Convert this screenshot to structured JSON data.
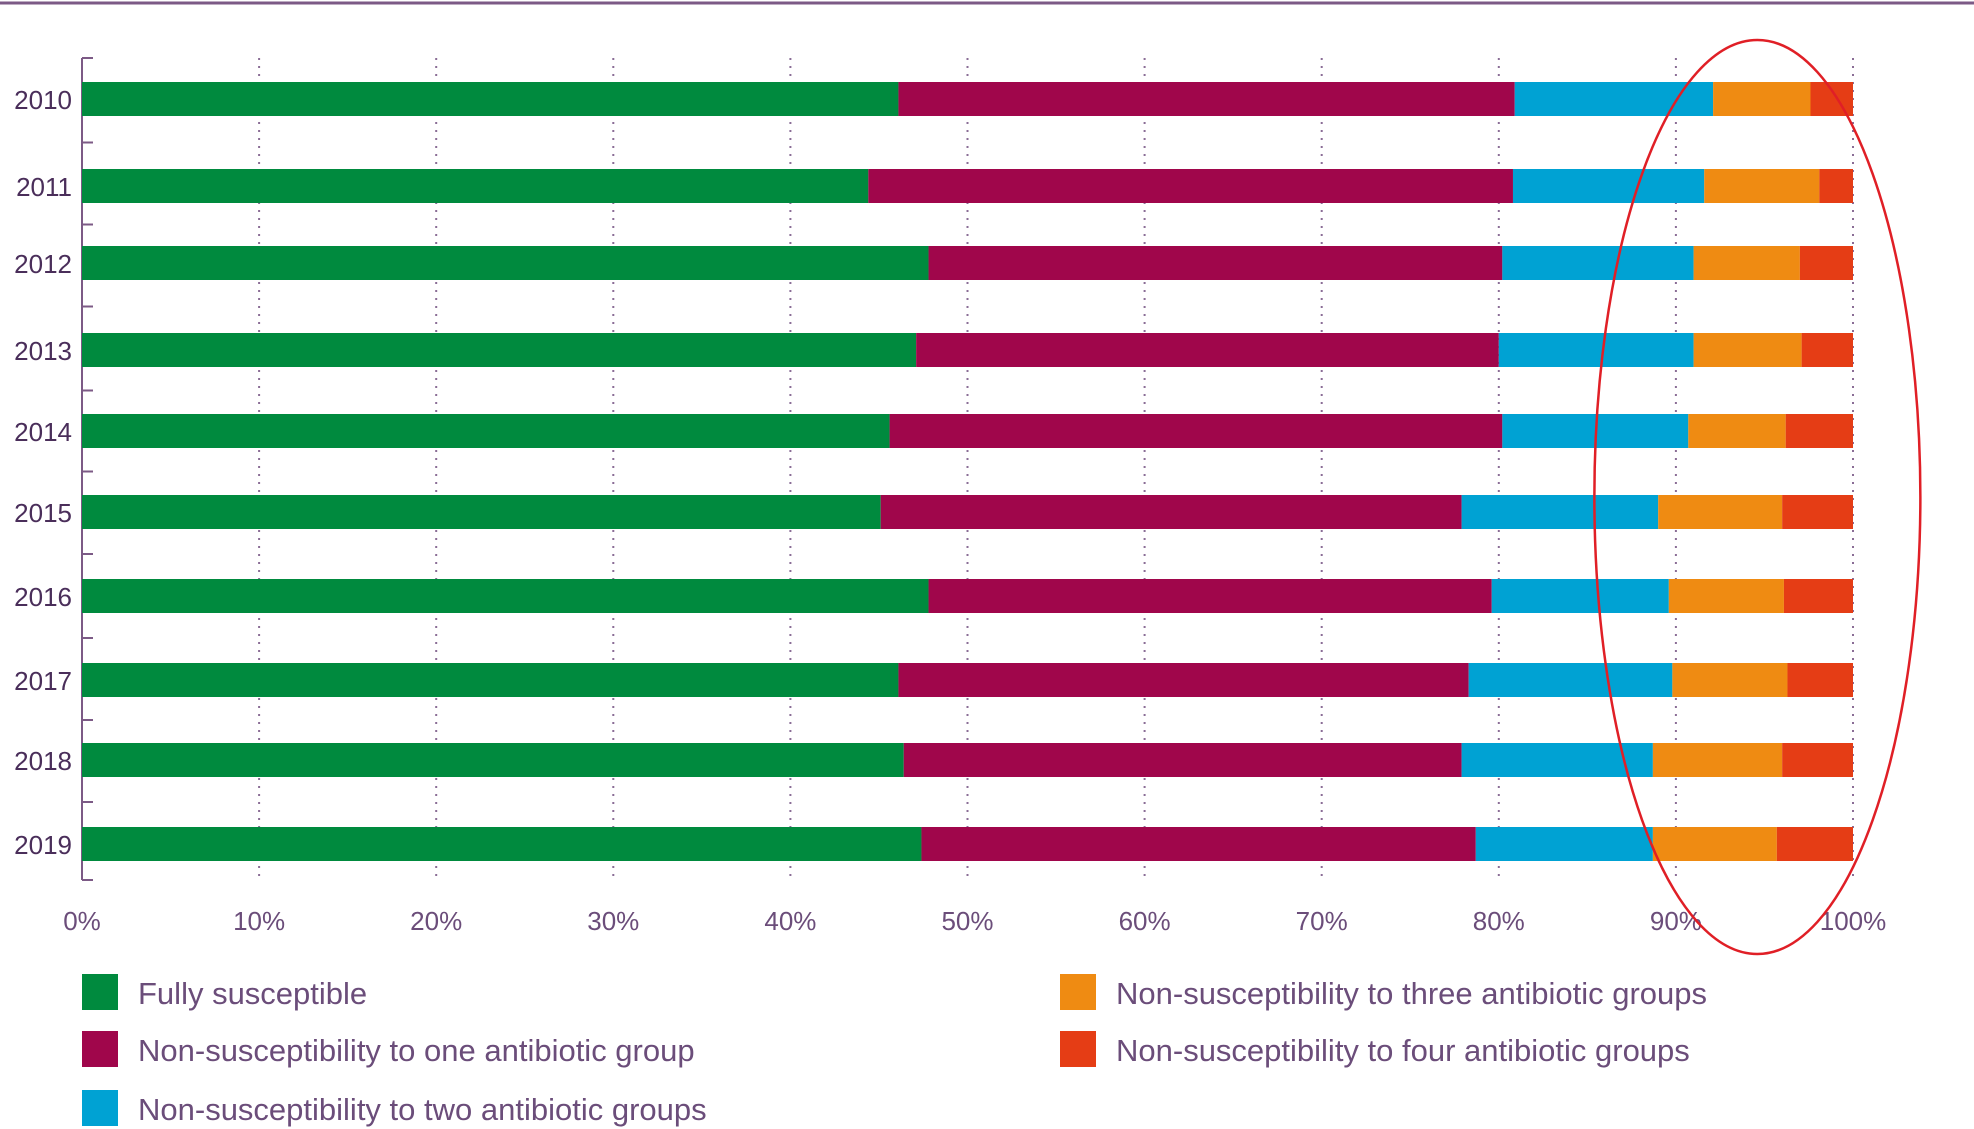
{
  "chart_data": {
    "type": "bar",
    "orientation": "horizontal",
    "stacked": true,
    "categories": [
      "2010",
      "2011",
      "2012",
      "2013",
      "2014",
      "2015",
      "2016",
      "2017",
      "2018",
      "2019"
    ],
    "xlim": [
      0,
      100
    ],
    "xticks": [
      "0%",
      "10%",
      "20%",
      "30%",
      "40%",
      "50%",
      "60%",
      "70%",
      "80%",
      "90%",
      "100%"
    ],
    "grid": "vertical dotted",
    "legend_position": "bottom",
    "series": [
      {
        "name": "Fully susceptible",
        "color": "#008a3e",
        "values": [
          46.1,
          44.4,
          47.8,
          47.1,
          45.6,
          45.1,
          47.8,
          46.1,
          46.4,
          47.4
        ]
      },
      {
        "name": "Non-susceptibility to one antibiotic group",
        "color": "#a0064b",
        "values": [
          34.8,
          36.4,
          32.4,
          32.9,
          34.6,
          32.8,
          31.8,
          32.2,
          31.5,
          31.3
        ]
      },
      {
        "name": "Non-susceptibility to two antibiotic groups",
        "color": "#00a2d3",
        "values": [
          11.2,
          10.8,
          10.8,
          11.0,
          10.5,
          11.1,
          10.0,
          11.5,
          10.8,
          10.0
        ]
      },
      {
        "name": "Non-susceptibility to three antibiotic groups",
        "color": "#ef8b12",
        "values": [
          5.5,
          6.5,
          6.0,
          6.1,
          5.5,
          7.0,
          6.5,
          6.5,
          7.3,
          7.0
        ]
      },
      {
        "name": "Non-susceptibility to four antibiotic groups",
        "color": "#e53d15",
        "values": [
          2.4,
          1.9,
          3.0,
          2.9,
          3.8,
          4.0,
          3.9,
          3.7,
          4.0,
          4.3
        ]
      }
    ],
    "annotation": {
      "type": "ellipse",
      "color": "#e01f26",
      "x_center": 94.6
    }
  }
}
